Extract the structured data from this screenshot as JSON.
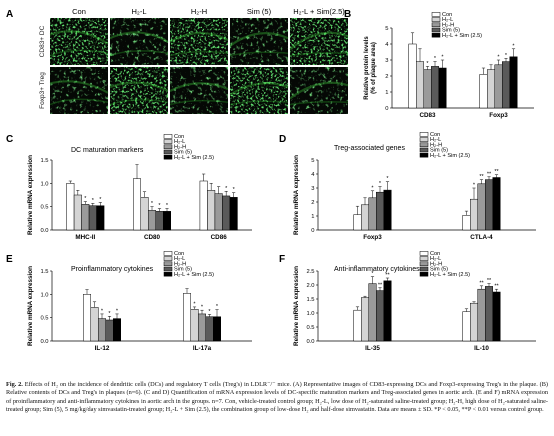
{
  "figure_label": "Fig. 2.",
  "caption": "Effects of H₂ on the incidence of dendritic cells (DCs) and regulatory T cells (Treg's) in LDLR⁻/⁻ mice. (A) Representative images of CD83-expressing DCs and Foxp3-expressing Treg's in the plaque. (B) Relative contents of DCs and Treg's in plaques (n=6). (C and D) Quantification of mRNA expression levels of DC-specific maturation markers and Treg-associated genes in aortic arch. (E and F) mRNA expression of proinflammatory and anti-inflammatory cytokines in aortic arch in the groups. n=7. Con, vehicle-treated control group; H₂-L, low dose of H₂-saturated saline-treated group; H₂-H, high dose of H₂-saturated saline-treated group; Sim (5), 5 mg/kg/day simvastatin-treated group; H₂-L + Sim (2.5), the combination group of low-dose H₂ and half-dose simvastatin. Data are means ± SD. *P < 0.05, **P < 0.01 versus control group.",
  "legend": [
    "Con",
    "H₂-L",
    "H₂-H",
    "Sim (5)",
    "H₂-L + Sim (2.5)"
  ],
  "colors": [
    "#ffffff",
    "#d4d4d4",
    "#9a9a9a",
    "#5a5a5a",
    "#000000"
  ],
  "panel_a": {
    "label": "A",
    "columns": [
      "Con",
      "H₂-L",
      "H₂-H",
      "Sim (5)",
      "H₂-L + Sim(2.5)"
    ],
    "rows": [
      "CD83+ DC",
      "Foxp3+ Treg"
    ]
  },
  "chart_data": [
    {
      "panel": "B",
      "type": "bar",
      "title": "",
      "ylabel": "Relative protein levels (% of plaque area)",
      "ylim": [
        0,
        5
      ],
      "yticks": [
        0,
        1,
        2,
        3,
        4,
        5
      ],
      "categories": [
        "CD83",
        "Foxp3"
      ],
      "series": [
        {
          "name": "Con",
          "values": [
            4.0,
            2.1
          ],
          "err": [
            0.7,
            0.4
          ],
          "sig": [
            "",
            ""
          ]
        },
        {
          "name": "H₂-L",
          "values": [
            2.9,
            2.4
          ],
          "err": [
            0.8,
            0.3
          ],
          "sig": [
            "",
            ""
          ]
        },
        {
          "name": "H₂-H",
          "values": [
            2.4,
            2.7
          ],
          "err": [
            0.2,
            0.3
          ],
          "sig": [
            "*",
            "*"
          ]
        },
        {
          "name": "Sim (5)",
          "values": [
            2.6,
            2.9
          ],
          "err": [
            0.3,
            0.2
          ],
          "sig": [
            "*",
            "*"
          ]
        },
        {
          "name": "H₂-L + Sim (2.5)",
          "values": [
            2.5,
            3.2
          ],
          "err": [
            0.5,
            0.5
          ],
          "sig": [
            "*",
            "*"
          ]
        }
      ]
    },
    {
      "panel": "C",
      "type": "bar",
      "title": "DC maturation markers",
      "ylabel": "Relative mRNA expression",
      "ylim": [
        0,
        1.5
      ],
      "yticks": [
        0.0,
        0.5,
        1.0,
        1.5
      ],
      "categories": [
        "MHC-II",
        "CD80",
        "CD86"
      ],
      "series": [
        {
          "name": "Con",
          "values": [
            1.0,
            1.1,
            1.05
          ],
          "err": [
            0.05,
            0.3,
            0.15
          ],
          "sig": [
            "",
            "",
            ""
          ]
        },
        {
          "name": "H₂-L",
          "values": [
            0.75,
            0.7,
            0.85
          ],
          "err": [
            0.1,
            0.12,
            0.15
          ],
          "sig": [
            "",
            "",
            ""
          ]
        },
        {
          "name": "H₂-H",
          "values": [
            0.55,
            0.42,
            0.78
          ],
          "err": [
            0.06,
            0.08,
            0.15
          ],
          "sig": [
            "*",
            "*",
            ""
          ]
        },
        {
          "name": "Sim (5)",
          "values": [
            0.52,
            0.4,
            0.73
          ],
          "err": [
            0.05,
            0.06,
            0.1
          ],
          "sig": [
            "*",
            "*",
            "*"
          ]
        },
        {
          "name": "H₂-L + Sim (2.5)",
          "values": [
            0.52,
            0.4,
            0.7
          ],
          "err": [
            0.07,
            0.06,
            0.1
          ],
          "sig": [
            "*",
            "*",
            "*"
          ]
        }
      ]
    },
    {
      "panel": "D",
      "type": "bar",
      "title": "Treg-associated genes",
      "ylabel": "Relative mRNA expression",
      "ylim": [
        0,
        5
      ],
      "yticks": [
        0,
        1,
        2,
        3,
        4,
        5
      ],
      "categories": [
        "Foxp3",
        "CTLA-4"
      ],
      "series": [
        {
          "name": "Con",
          "values": [
            1.1,
            1.05
          ],
          "err": [
            0.6,
            0.3
          ],
          "sig": [
            "",
            ""
          ]
        },
        {
          "name": "H₂-L",
          "values": [
            1.8,
            2.2
          ],
          "err": [
            0.5,
            0.8
          ],
          "sig": [
            "",
            "*"
          ]
        },
        {
          "name": "H₂-H",
          "values": [
            2.3,
            3.3
          ],
          "err": [
            0.5,
            0.3
          ],
          "sig": [
            "*",
            "**"
          ]
        },
        {
          "name": "Sim (5)",
          "values": [
            2.7,
            3.6
          ],
          "err": [
            0.4,
            0.2
          ],
          "sig": [
            "*",
            "**"
          ]
        },
        {
          "name": "H₂-L + Sim (2.5)",
          "values": [
            2.85,
            3.75
          ],
          "err": [
            0.6,
            0.2
          ],
          "sig": [
            "*",
            "**"
          ]
        }
      ]
    },
    {
      "panel": "E",
      "type": "bar",
      "title": "Proinflammatory cytokines",
      "ylabel": "Relative mRNA expression",
      "ylim": [
        0,
        1.5
      ],
      "yticks": [
        0.0,
        0.5,
        1.0,
        1.5
      ],
      "categories": [
        "IL-12",
        "IL-17a"
      ],
      "series": [
        {
          "name": "Con",
          "values": [
            1.0,
            1.02
          ],
          "err": [
            0.1,
            0.1
          ],
          "sig": [
            "",
            ""
          ]
        },
        {
          "name": "H₂-L",
          "values": [
            0.72,
            0.68
          ],
          "err": [
            0.12,
            0.05
          ],
          "sig": [
            "",
            "*"
          ]
        },
        {
          "name": "H₂-H",
          "values": [
            0.48,
            0.58
          ],
          "err": [
            0.1,
            0.08
          ],
          "sig": [
            "*",
            "*"
          ]
        },
        {
          "name": "Sim (5)",
          "values": [
            0.45,
            0.52
          ],
          "err": [
            0.08,
            0.05
          ],
          "sig": [
            "*",
            "*"
          ]
        },
        {
          "name": "H₂-L + Sim (2.5)",
          "values": [
            0.48,
            0.52
          ],
          "err": [
            0.1,
            0.15
          ],
          "sig": [
            "*",
            "*"
          ]
        }
      ]
    },
    {
      "panel": "F",
      "type": "bar",
      "title": "Anti-inflammatory cytokines",
      "ylabel": "Relative mRNA expression",
      "ylim": [
        0,
        2.5
      ],
      "yticks": [
        0.0,
        0.5,
        1.0,
        1.5,
        2.0,
        2.5
      ],
      "categories": [
        "IL-35",
        "IL-10"
      ],
      "series": [
        {
          "name": "Con",
          "values": [
            1.1,
            1.05
          ],
          "err": [
            0.12,
            0.1
          ],
          "sig": [
            "",
            ""
          ]
        },
        {
          "name": "H₂-L",
          "values": [
            1.55,
            1.35
          ],
          "err": [
            0.05,
            0.05
          ],
          "sig": [
            "",
            ""
          ]
        },
        {
          "name": "H₂-H",
          "values": [
            2.05,
            1.85
          ],
          "err": [
            0.25,
            0.12
          ],
          "sig": [
            "*",
            "**"
          ]
        },
        {
          "name": "Sim (5)",
          "values": [
            1.8,
            1.95
          ],
          "err": [
            0.1,
            0.1
          ],
          "sig": [
            "**",
            "**"
          ]
        },
        {
          "name": "H₂-L + Sim (2.5)",
          "values": [
            2.15,
            1.75
          ],
          "err": [
            0.1,
            0.1
          ],
          "sig": [
            "**",
            "**"
          ]
        }
      ]
    }
  ]
}
